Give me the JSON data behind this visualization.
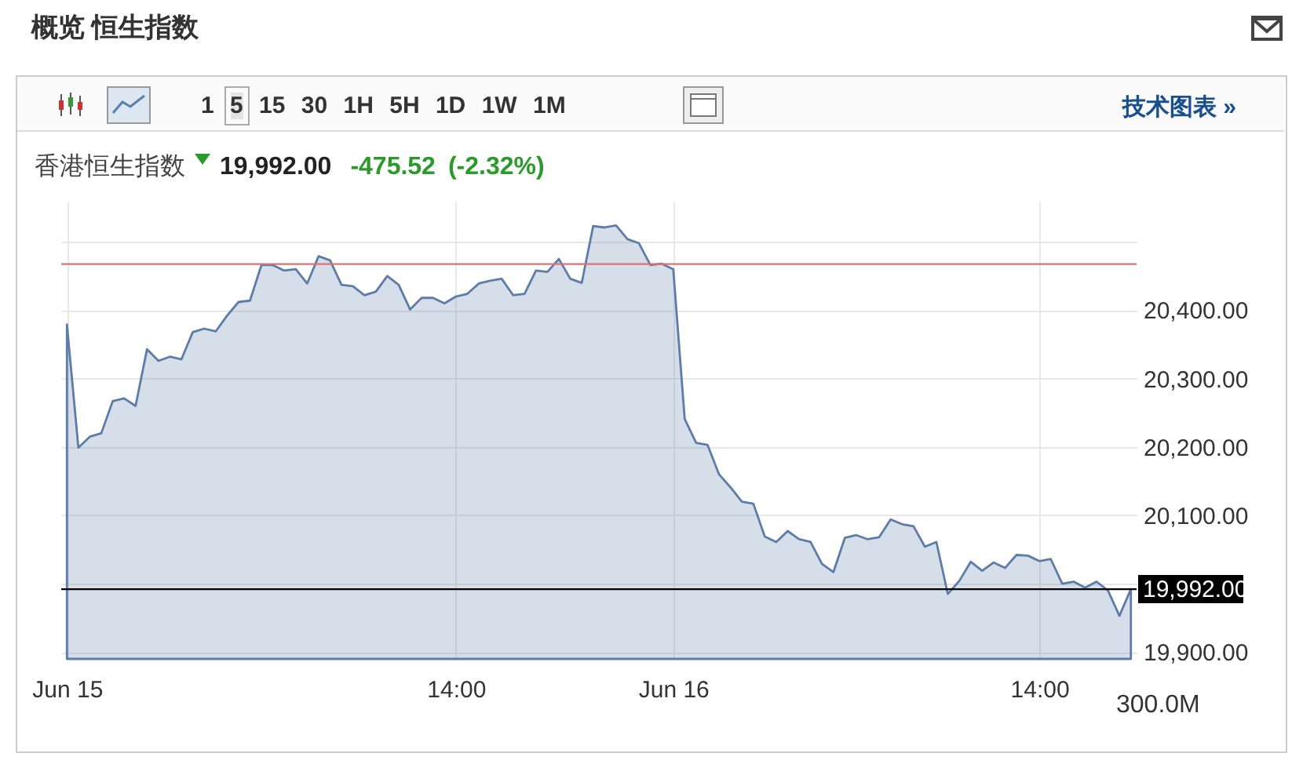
{
  "chart_data": {
    "type": "area",
    "title": "概览 恒生指数",
    "annotations": [
      "1 5 15 30 1H 5H 1D 1W 1M",
      "技术图表 »",
      "香港恒生指数",
      "19,992.00",
      "-475.52",
      "(-2.32%)",
      "300.0M"
    ],
    "categories": [
      "Jun 15",
      null,
      null,
      null,
      null,
      null,
      null,
      null,
      null,
      null,
      null,
      null,
      null,
      null,
      null,
      null,
      null,
      null,
      null,
      null,
      null,
      null,
      null,
      null,
      null,
      null,
      null,
      null,
      null,
      null,
      null,
      null,
      null,
      null,
      "14:00",
      null,
      null,
      null,
      null,
      null,
      null,
      null,
      null,
      null,
      null,
      null,
      null,
      null,
      null,
      null,
      null,
      null,
      null,
      "Jun 16",
      null,
      null,
      null,
      null,
      null,
      null,
      null,
      null,
      null,
      null,
      null,
      null,
      null,
      null,
      null,
      null,
      null,
      null,
      null,
      null,
      null,
      null,
      null,
      null,
      null,
      null,
      null,
      null,
      null,
      null,
      null,
      "14:00",
      null,
      null,
      null,
      null,
      null,
      null,
      null,
      null
    ],
    "series": [
      {
        "color": "#5d7ca8",
        "values": [
          20379,
          20199,
          20215,
          20220,
          20267,
          20271,
          20260,
          20343,
          20326,
          20332,
          20328,
          20368,
          20373,
          20369,
          20392,
          20412,
          20414,
          20466,
          20466,
          20458,
          20460,
          20439,
          20479,
          20473,
          20437,
          20435,
          20422,
          20427,
          20450,
          20437,
          20401,
          20418,
          20418,
          20410,
          20420,
          20424,
          20439,
          20443,
          20446,
          20422,
          20424,
          20458,
          20456,
          20475,
          20446,
          20440,
          20523,
          20521,
          20524,
          20504,
          20498,
          20466,
          20468,
          20460,
          20241,
          20206,
          20203,
          20160,
          20141,
          20120,
          20117,
          20069,
          20061,
          20077,
          20065,
          20061,
          20029,
          20017,
          20067,
          20071,
          20065,
          20068,
          20094,
          20087,
          20084,
          20054,
          20061,
          19985,
          20004,
          20032,
          20019,
          20031,
          20023,
          20042,
          20041,
          20033,
          20036,
          20000,
          20003,
          19994,
          20003,
          19990,
          19953,
          19992
        ]
      }
    ],
    "ylim": [
      19890,
      20560
    ],
    "yticks": [
      {
        "value": 19900,
        "label": "19,900.00"
      },
      {
        "value": 20000,
        "label": null
      },
      {
        "value": 20100,
        "label": "20,100.00"
      },
      {
        "value": 20200,
        "label": "20,200.00"
      },
      {
        "value": 20300,
        "label": "20,300.00"
      },
      {
        "value": 20400,
        "label": "20,400.00"
      },
      {
        "value": 20500,
        "label": null
      }
    ],
    "ref_lines": [
      {
        "axis": "y",
        "value": 20467.52,
        "label": null,
        "color": "#e07070"
      },
      {
        "axis": "y",
        "value": 19992,
        "label": "19,992.00",
        "color": "#000000"
      }
    ],
    "grid": true
  }
}
